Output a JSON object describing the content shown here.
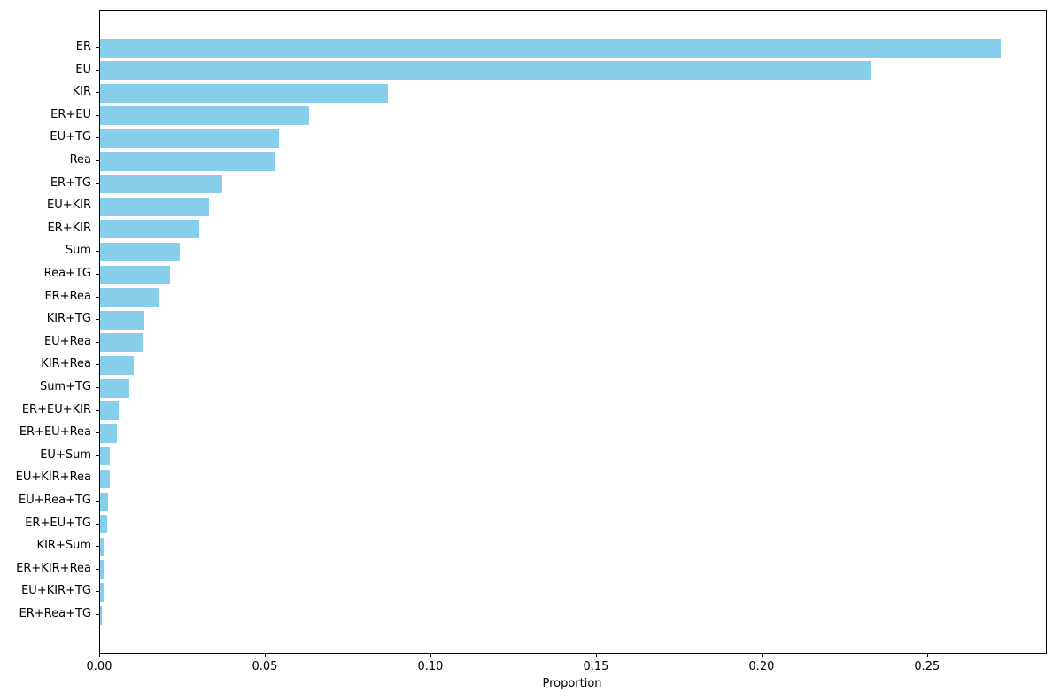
{
  "chart_data": {
    "type": "bar",
    "orientation": "horizontal",
    "title": "",
    "xlabel": "Proportion",
    "ylabel": "",
    "categories": [
      "ER",
      "EU",
      "KIR",
      "ER+EU",
      "EU+TG",
      "Rea",
      "ER+TG",
      "EU+KIR",
      "ER+KIR",
      "Sum",
      "Rea+TG",
      "ER+Rea",
      "KIR+TG",
      "EU+Rea",
      "KIR+Rea",
      "Sum+TG",
      "ER+EU+KIR",
      "ER+EU+Rea",
      "EU+Sum",
      "EU+KIR+Rea",
      "EU+Rea+TG",
      "ER+EU+TG",
      "KIR+Sum",
      "ER+KIR+Rea",
      "EU+KIR+TG",
      "ER+Rea+TG"
    ],
    "values": [
      0.272,
      0.233,
      0.087,
      0.063,
      0.054,
      0.053,
      0.037,
      0.033,
      0.03,
      0.024,
      0.021,
      0.018,
      0.0134,
      0.0128,
      0.0101,
      0.0088,
      0.0056,
      0.005,
      0.003,
      0.003,
      0.0025,
      0.0021,
      0.0012,
      0.0011,
      0.0011,
      0.0005
    ],
    "xlim": [
      0,
      0.2856
    ],
    "xticks": [
      0.0,
      0.05,
      0.1,
      0.15,
      0.2,
      0.25
    ],
    "xtick_labels": [
      "0.00",
      "0.05",
      "0.10",
      "0.15",
      "0.20",
      "0.25"
    ],
    "bar_color": "#87CEEB",
    "grid": false,
    "legend_position": "none"
  }
}
